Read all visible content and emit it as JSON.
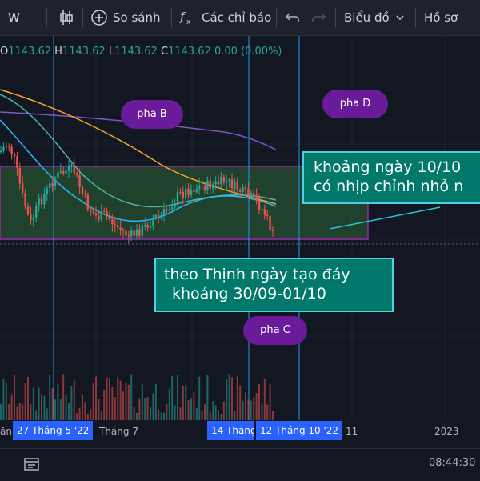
{
  "toolbar": {
    "interval": "W",
    "compare_label": "So sánh",
    "indicators_label": "Các chỉ báo",
    "chart_type_label": "Biểu đồ",
    "profile_label": "Hồ sơ",
    "icons": [
      "candlestick-icon",
      "plus-circle-icon",
      "fx-icon",
      "undo-icon",
      "redo-icon",
      "chevron-down-icon"
    ]
  },
  "ohlc": {
    "o_key": "O",
    "o_val": "1143.62",
    "h_key": "H",
    "h_val": "1143.62",
    "l_key": "L",
    "l_val": "1143.62",
    "c_key": "C",
    "c_val": "1143.62",
    "change": "0.00 (0.00%)"
  },
  "annotations": {
    "phase_b": "pha B",
    "phase_c": "pha C",
    "phase_d": "pha D",
    "note_right_line1": "khoảng ngày 10/10",
    "note_right_line2": "có nhịp chỉnh nhỏ n",
    "note_center_line1": "theo Thịnh ngày tạo đáy",
    "note_center_line2": "khoảng 30/09-01/10"
  },
  "time_axis": {
    "left_partial": "ăn",
    "badge_1": "27 Tháng 5 '22",
    "label_month7": "Tháng 7",
    "badge_2": "14 Tháng",
    "badge_3": "12 Tháng 10 '22",
    "label_11": "11",
    "label_2023": "2023"
  },
  "bottom": {
    "clock": "08:44:30",
    "icons": [
      "replay-icon"
    ]
  },
  "colors": {
    "up": "#26a69a",
    "down": "#ef5350",
    "range_box": "#9c27b0",
    "accent": "#2962ff",
    "bubble": "#6a1b9a",
    "note": "#00796b"
  }
}
